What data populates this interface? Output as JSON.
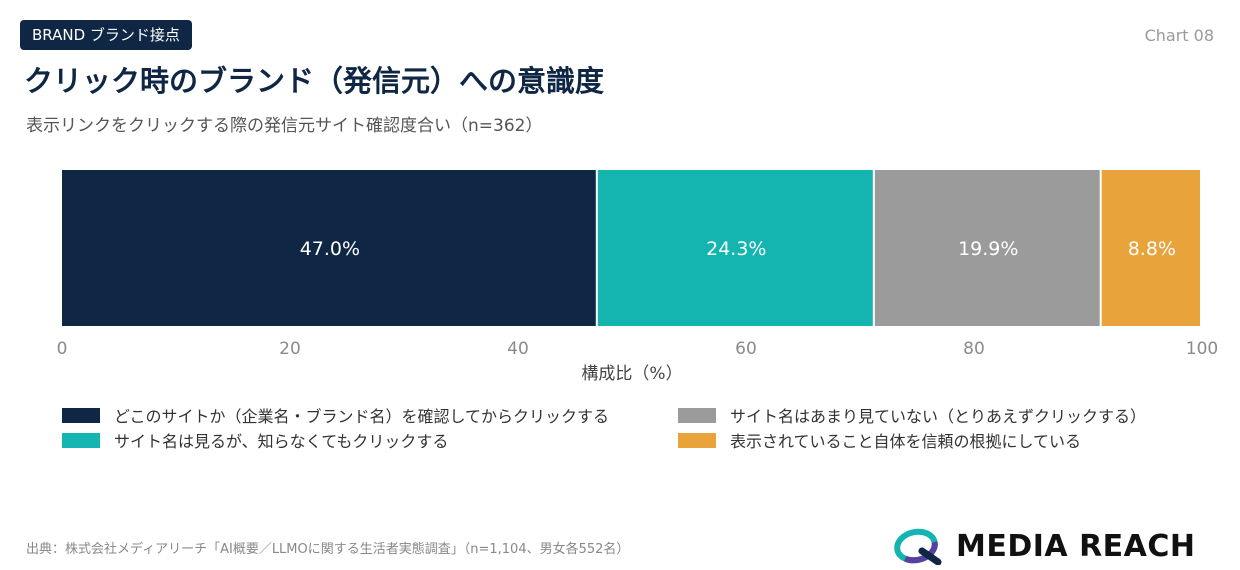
{
  "header": {
    "tag": "BRAND ブランド接点",
    "chart_no": "Chart 08",
    "title": "クリック時のブランド（発信元）への意識度",
    "subtitle": "表示リンクをクリックする際の発信元サイト確認度合い（n=362）"
  },
  "chart_data": {
    "type": "bar",
    "orientation": "horizontal-stacked-100",
    "xlabel": "構成比（%）",
    "xlim": [
      0,
      100
    ],
    "ticks": [
      "0",
      "20",
      "40",
      "60",
      "80",
      "100"
    ],
    "grid": false,
    "legend_position": "bottom",
    "series": [
      {
        "name": "どこのサイトか（企業名・ブランド名）を確認してからクリックする",
        "value": 47.0,
        "label": "47.0%",
        "color": "#0f2744"
      },
      {
        "name": "サイト名は見るが、知らなくてもクリックする",
        "value": 24.3,
        "label": "24.3%",
        "color": "#14b5b0"
      },
      {
        "name": "サイト名はあまり見ていない（とりあえずクリックする）",
        "value": 19.9,
        "label": "19.9%",
        "color": "#9b9b9b"
      },
      {
        "name": "表示されていること自体を信頼の根拠にしている",
        "value": 8.8,
        "label": "8.8%",
        "color": "#e8a33a"
      }
    ]
  },
  "footer": {
    "source": "出典：株式会社メディアリーチ「AI概要／LLMOに関する生活者実態調査」（n=1,104、男女各552名）",
    "brand": "MEDIA REACH",
    "logo_icon": "media-reach-logo-icon",
    "logo_colors": [
      "#14b5b0",
      "#5a3fa0",
      "#0f2744"
    ]
  }
}
